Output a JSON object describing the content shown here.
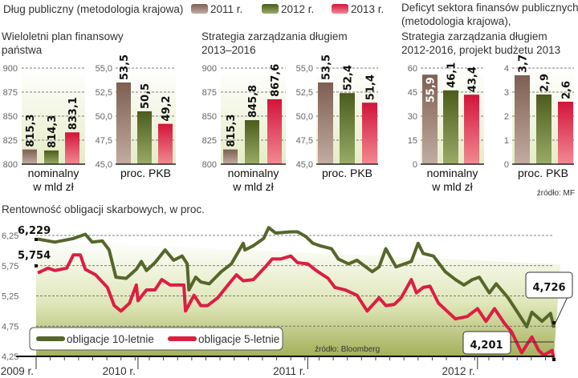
{
  "header": {
    "title": "Dług publiczny (metodologia krajowa)",
    "legend": [
      {
        "label": "2011 r.",
        "color": "#8c6e60"
      },
      {
        "label": "2012 r.",
        "color": "#56662a"
      },
      {
        "label": "2013 r.",
        "color": "#dc1e42"
      }
    ],
    "panel_titles": {
      "wpf": [
        "Wieloletni plan finansowy",
        "państwa"
      ],
      "szd": [
        "Strategia zarządzania długiem",
        "2013–2016"
      ],
      "deficit": [
        "Deficyt sektora finansów publicznych",
        "(metodologia krajowa),",
        "Strategia zarządzania długiem",
        "2012-2016, projekt budżetu 2013"
      ]
    },
    "source_mf": "źródło: MF"
  },
  "chart_data": [
    {
      "type": "bar",
      "panel": "Wieloletni plan finansowy państwa",
      "xlabel": [
        "nominalny",
        "w mld zł"
      ],
      "ylim": [
        800,
        900
      ],
      "ticks": [
        "800",
        "825",
        "850",
        "875",
        "900"
      ],
      "categories": [
        "2011 r.",
        "2012 r.",
        "2013 r."
      ],
      "values": [
        815.3,
        814.3,
        833.1
      ],
      "labels": [
        "815,3",
        "814,3",
        "833,1"
      ]
    },
    {
      "type": "bar",
      "panel": "Wieloletni plan finansowy państwa",
      "xlabel": [
        "proc. PKB"
      ],
      "ylim": [
        45,
        55
      ],
      "ticks": [
        "45,0",
        "47,5",
        "50,0",
        "52,5",
        "55,0"
      ],
      "categories": [
        "2011 r.",
        "2012 r.",
        "2013 r."
      ],
      "values": [
        53.5,
        50.5,
        49.2
      ],
      "labels": [
        "53,5",
        "50,5",
        "49,2"
      ]
    },
    {
      "type": "bar",
      "panel": "Strategia zarządzania długiem 2013–2016",
      "xlabel": [
        "nominalny",
        "w mld zł"
      ],
      "ylim": [
        800,
        900
      ],
      "ticks": [
        "800",
        "825",
        "850",
        "875",
        "900"
      ],
      "categories": [
        "2011 r.",
        "2012 r.",
        "2013 r."
      ],
      "values": [
        815.3,
        845.8,
        867.6
      ],
      "labels": [
        "815,3",
        "845,8",
        "867,6"
      ]
    },
    {
      "type": "bar",
      "panel": "Strategia zarządzania długiem 2013–2016",
      "xlabel": [
        "proc. PKB"
      ],
      "ylim": [
        45,
        55
      ],
      "ticks": [
        "45,0",
        "47,5",
        "50,0",
        "52,5",
        "55,0"
      ],
      "categories": [
        "2011 r.",
        "2012 r.",
        "2013 r."
      ],
      "values": [
        53.5,
        52.4,
        51.4
      ],
      "labels": [
        "53,5",
        "52,4",
        "51,4"
      ]
    },
    {
      "type": "bar",
      "panel": "Deficyt sektora finansów publicznych",
      "xlabel": [
        "nominalny",
        "w mld zł"
      ],
      "ylim": [
        0,
        60
      ],
      "ticks": [
        "0",
        "15",
        "30",
        "45",
        "60"
      ],
      "categories": [
        "2011 r.",
        "2012 r.",
        "2013 r."
      ],
      "values": [
        55.9,
        46.1,
        43.4
      ],
      "labels": [
        "55,9",
        "46,1",
        "43,4"
      ]
    },
    {
      "type": "bar",
      "panel": "Deficyt sektora finansów publicznych",
      "xlabel": [
        "proc. PKB"
      ],
      "ylim": [
        0,
        4
      ],
      "ticks": [
        "0",
        "1",
        "2",
        "3",
        "4"
      ],
      "categories": [
        "2011 r.",
        "2012 r.",
        "2013 r."
      ],
      "values": [
        3.7,
        2.9,
        2.6
      ],
      "labels": [
        "3,7",
        "2,9",
        "2,6"
      ]
    },
    {
      "type": "line",
      "title": "Rentowność obligacji skarbowych, w proc.",
      "ylim": [
        4.25,
        6.25
      ],
      "yticks": [
        "4,25",
        "4,75",
        "5,25",
        "5,75",
        "6,25"
      ],
      "xlim": [
        2009.4,
        2012.45
      ],
      "xticks": [
        {
          "label": "2009 r.",
          "x": 2009.4
        },
        {
          "label": "2010 r.",
          "x": 2010.0
        },
        {
          "label": "2011 r.",
          "x": 2011.0
        },
        {
          "label": "2012 r.",
          "x": 2012.0
        }
      ],
      "source": "źródło: Bloomberg",
      "series": [
        {
          "name": "obligacje 10-letnie",
          "color": "#56662a",
          "start_label": "6,229",
          "end_label": "4,726",
          "points": [
            [
              2009.41,
              6.19
            ],
            [
              2009.51,
              6.14
            ],
            [
              2009.62,
              6.2
            ],
            [
              2009.69,
              6.27
            ],
            [
              2009.73,
              6.14
            ],
            [
              2009.79,
              6.16
            ],
            [
              2009.83,
              6.01
            ],
            [
              2009.87,
              5.56
            ],
            [
              2009.93,
              5.54
            ],
            [
              2009.99,
              5.69
            ],
            [
              2010.02,
              5.82
            ],
            [
              2010.05,
              5.67
            ],
            [
              2010.1,
              5.8
            ],
            [
              2010.16,
              6.01
            ],
            [
              2010.21,
              5.84
            ],
            [
              2010.26,
              5.91
            ],
            [
              2010.29,
              5.78
            ],
            [
              2010.3,
              5.35
            ],
            [
              2010.34,
              5.56
            ],
            [
              2010.37,
              5.48
            ],
            [
              2010.42,
              5.45
            ],
            [
              2010.49,
              5.65
            ],
            [
              2010.55,
              5.78
            ],
            [
              2010.62,
              6.12
            ],
            [
              2010.63,
              6.01
            ],
            [
              2010.68,
              6.08
            ],
            [
              2010.74,
              6.2
            ],
            [
              2010.77,
              6.38
            ],
            [
              2010.81,
              6.29
            ],
            [
              2010.9,
              6.31
            ],
            [
              2010.94,
              6.31
            ],
            [
              2010.99,
              6.23
            ],
            [
              2011.03,
              6.12
            ],
            [
              2011.07,
              6.08
            ],
            [
              2011.14,
              6.03
            ],
            [
              2011.18,
              5.86
            ],
            [
              2011.24,
              5.78
            ],
            [
              2011.29,
              5.84
            ],
            [
              2011.38,
              5.65
            ],
            [
              2011.42,
              5.73
            ],
            [
              2011.46,
              6.03
            ],
            [
              2011.52,
              5.73
            ],
            [
              2011.57,
              5.78
            ],
            [
              2011.61,
              5.82
            ],
            [
              2011.65,
              6.12
            ],
            [
              2011.68,
              5.95
            ],
            [
              2011.74,
              5.91
            ],
            [
              2011.81,
              5.65
            ],
            [
              2011.87,
              5.52
            ],
            [
              2011.92,
              5.43
            ],
            [
              2011.97,
              5.52
            ],
            [
              2012.01,
              5.56
            ],
            [
              2012.07,
              5.3
            ],
            [
              2012.11,
              5.45
            ],
            [
              2012.18,
              5.22
            ],
            [
              2012.24,
              4.96
            ],
            [
              2012.29,
              4.74
            ],
            [
              2012.32,
              4.98
            ],
            [
              2012.38,
              4.83
            ],
            [
              2012.43,
              4.96
            ],
            [
              2012.45,
              4.726
            ]
          ]
        },
        {
          "name": "obligacje 5-letnie",
          "color": "#dc1e42",
          "start_label": "5,754",
          "end_label": "4,201",
          "points": [
            [
              2009.41,
              5.63
            ],
            [
              2009.47,
              5.71
            ],
            [
              2009.51,
              5.67
            ],
            [
              2009.58,
              5.71
            ],
            [
              2009.62,
              5.93
            ],
            [
              2009.66,
              5.93
            ],
            [
              2009.69,
              5.69
            ],
            [
              2009.75,
              5.6
            ],
            [
              2009.82,
              5.39
            ],
            [
              2009.86,
              5.09
            ],
            [
              2009.9,
              5.0
            ],
            [
              2009.95,
              5.13
            ],
            [
              2009.99,
              5.43
            ],
            [
              2010.0,
              5.17
            ],
            [
              2010.05,
              5.35
            ],
            [
              2010.1,
              5.35
            ],
            [
              2010.14,
              5.52
            ],
            [
              2010.19,
              5.43
            ],
            [
              2010.27,
              5.43
            ],
            [
              2010.28,
              5.0
            ],
            [
              2010.33,
              5.26
            ],
            [
              2010.37,
              5.09
            ],
            [
              2010.41,
              5.09
            ],
            [
              2010.47,
              5.22
            ],
            [
              2010.53,
              5.43
            ],
            [
              2010.58,
              5.6
            ],
            [
              2010.62,
              5.5
            ],
            [
              2010.68,
              5.52
            ],
            [
              2010.75,
              5.73
            ],
            [
              2010.79,
              5.86
            ],
            [
              2010.84,
              5.86
            ],
            [
              2010.9,
              5.91
            ],
            [
              2010.94,
              5.8
            ],
            [
              2011.0,
              5.78
            ],
            [
              2011.05,
              5.67
            ],
            [
              2011.12,
              5.54
            ],
            [
              2011.16,
              5.39
            ],
            [
              2011.22,
              5.35
            ],
            [
              2011.29,
              5.26
            ],
            [
              2011.35,
              5.0
            ],
            [
              2011.42,
              5.22
            ],
            [
              2011.46,
              5.09
            ],
            [
              2011.51,
              5.11
            ],
            [
              2011.55,
              5.22
            ],
            [
              2011.61,
              5.52
            ],
            [
              2011.64,
              5.3
            ],
            [
              2011.68,
              5.39
            ],
            [
              2011.72,
              5.41
            ],
            [
              2011.77,
              5.13
            ],
            [
              2011.87,
              4.87
            ],
            [
              2011.94,
              4.91
            ],
            [
              2012.0,
              5.04
            ],
            [
              2012.05,
              4.83
            ],
            [
              2012.1,
              5.04
            ],
            [
              2012.16,
              4.79
            ],
            [
              2012.2,
              4.66
            ],
            [
              2012.26,
              4.31
            ],
            [
              2012.32,
              4.57
            ],
            [
              2012.36,
              4.35
            ],
            [
              2012.39,
              4.27
            ],
            [
              2012.44,
              4.35
            ],
            [
              2012.45,
              4.201
            ]
          ]
        }
      ]
    }
  ]
}
